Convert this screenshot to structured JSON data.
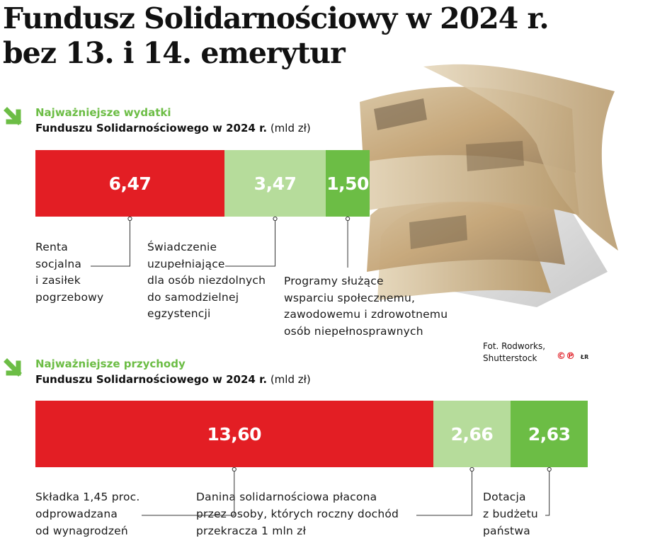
{
  "title": {
    "line1": "Fundusz Solidarnościowy w 2024 r.",
    "line2": "bez 13. i 14. emerytur"
  },
  "photo_credit": {
    "line1": "Fot. Rodworks,",
    "line2": "Shutterstock",
    "logo": "©℗",
    "initials": "ŁR"
  },
  "icons": {
    "section_arrow": "arrow-down-right-icon"
  },
  "colors": {
    "red": "#e31e24",
    "light_green": "#b6dc9b",
    "green": "#6cbd45",
    "heading_green": "#6cbd45"
  },
  "chart_data": [
    {
      "type": "bar",
      "orientation": "horizontal-stacked",
      "heading": "Najważniejsze wydatki",
      "subtitle_bold": "Funduszu Solidarnościowego w 2024 r.",
      "unit": "(mld zł)",
      "categories": [
        "Renta socjalna i zasiłek pogrzebowy",
        "Świadczenie uzupełniające dla osób niezdolnych do samodzielnej egzystencji",
        "Programy służące wsparciu społecznemu, zawodowemu i zdrowotnemu osób niepełnosprawnych"
      ],
      "value_labels": [
        "6,47",
        "3,47",
        "1,50"
      ],
      "values": [
        6.47,
        3.47,
        1.5
      ],
      "colors": [
        "#e31e24",
        "#b6dc9b",
        "#6cbd45"
      ],
      "category_lines": [
        [
          "Renta",
          "socjalna",
          "i zasiłek",
          "pogrzebowy"
        ],
        [
          "Świadczenie",
          "uzupełniające",
          "dla osób niezdolnych",
          "do samodzielnej",
          "egzystencji"
        ],
        [
          "Programy służące",
          "wsparciu społecznemu,",
          "zawodowemu i zdrowotnemu",
          "osób niepełnosprawnych"
        ]
      ]
    },
    {
      "type": "bar",
      "orientation": "horizontal-stacked",
      "heading": "Najważniejsze przychody",
      "subtitle_bold": "Funduszu Solidarnościowego w 2024 r.",
      "unit": "(mld zł)",
      "categories": [
        "Składka 1,45 proc. odprowadzana od wynagrodzeń",
        "Danina solidarnościowa płacona przez osoby, których roczny dochód przekracza 1 mln zł",
        "Dotacja z budżetu państwa"
      ],
      "value_labels": [
        "13,60",
        "2,66",
        "2,63"
      ],
      "values": [
        13.6,
        2.66,
        2.63
      ],
      "colors": [
        "#e31e24",
        "#b6dc9b",
        "#6cbd45"
      ],
      "category_lines": [
        [
          "Składka 1,45 proc.",
          "odprowadzana",
          "od wynagrodzeń"
        ],
        [
          "Danina solidarnościowa płacona",
          "przez osoby, których roczny dochód",
          "przekracza 1 mln zł"
        ],
        [
          "Dotacja",
          "z budżetu",
          "państwa"
        ]
      ]
    }
  ]
}
